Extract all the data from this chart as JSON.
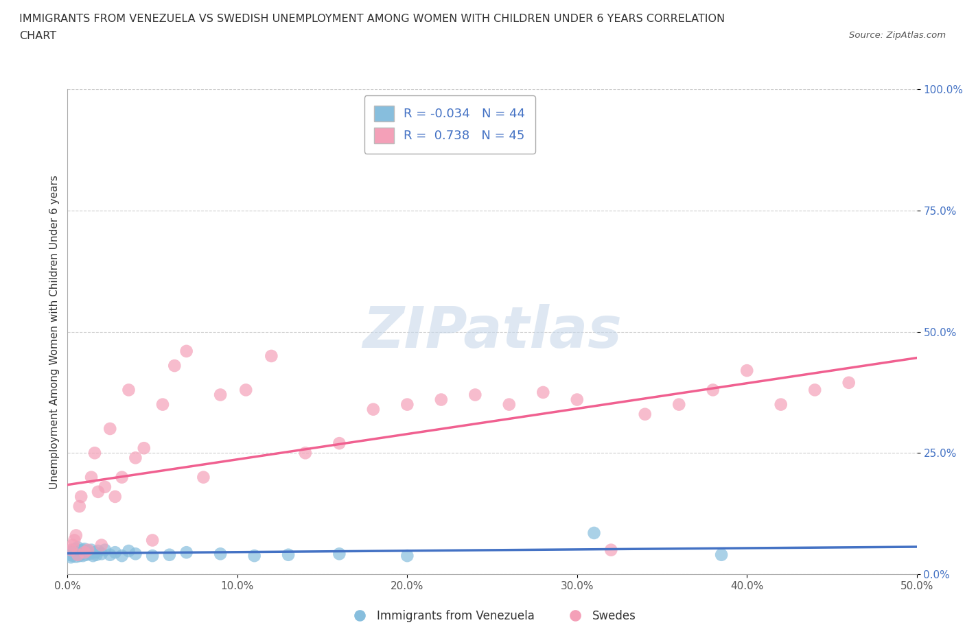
{
  "title_line1": "IMMIGRANTS FROM VENEZUELA VS SWEDISH UNEMPLOYMENT AMONG WOMEN WITH CHILDREN UNDER 6 YEARS CORRELATION",
  "title_line2": "CHART",
  "source": "Source: ZipAtlas.com",
  "ylabel": "Unemployment Among Women with Children Under 6 years",
  "watermark": "ZIPatlas",
  "xlim": [
    0.0,
    0.5
  ],
  "ylim": [
    0.0,
    1.0
  ],
  "xticks": [
    0.0,
    0.1,
    0.2,
    0.3,
    0.4,
    0.5
  ],
  "yticks": [
    0.0,
    0.25,
    0.5,
    0.75,
    1.0
  ],
  "xticklabels": [
    "0.0%",
    "10.0%",
    "20.0%",
    "30.0%",
    "40.0%",
    "50.0%"
  ],
  "yticklabels": [
    "0.0%",
    "25.0%",
    "50.0%",
    "75.0%",
    "100.0%"
  ],
  "blue_R": -0.034,
  "blue_N": 44,
  "pink_R": 0.738,
  "pink_N": 45,
  "blue_color": "#87BEDD",
  "pink_color": "#F4A0B8",
  "blue_line_color": "#4472C4",
  "pink_line_color": "#F06090",
  "legend_label_blue": "Immigrants from Venezuela",
  "legend_label_pink": "Swedes",
  "blue_scatter_x": [
    0.001,
    0.002,
    0.002,
    0.003,
    0.003,
    0.004,
    0.004,
    0.005,
    0.005,
    0.006,
    0.006,
    0.007,
    0.007,
    0.008,
    0.008,
    0.009,
    0.009,
    0.01,
    0.01,
    0.011,
    0.012,
    0.013,
    0.014,
    0.015,
    0.016,
    0.017,
    0.018,
    0.02,
    0.022,
    0.025,
    0.028,
    0.032,
    0.036,
    0.04,
    0.05,
    0.06,
    0.07,
    0.09,
    0.11,
    0.13,
    0.16,
    0.2,
    0.31,
    0.385
  ],
  "blue_scatter_y": [
    0.04,
    0.035,
    0.045,
    0.038,
    0.05,
    0.042,
    0.048,
    0.036,
    0.052,
    0.04,
    0.055,
    0.044,
    0.038,
    0.048,
    0.042,
    0.05,
    0.038,
    0.045,
    0.052,
    0.04,
    0.048,
    0.042,
    0.05,
    0.038,
    0.045,
    0.04,
    0.048,
    0.042,
    0.05,
    0.04,
    0.045,
    0.038,
    0.048,
    0.042,
    0.038,
    0.04,
    0.045,
    0.042,
    0.038,
    0.04,
    0.042,
    0.038,
    0.085,
    0.04
  ],
  "pink_scatter_x": [
    0.002,
    0.003,
    0.004,
    0.005,
    0.006,
    0.007,
    0.008,
    0.01,
    0.012,
    0.014,
    0.016,
    0.018,
    0.02,
    0.022,
    0.025,
    0.028,
    0.032,
    0.036,
    0.04,
    0.045,
    0.05,
    0.056,
    0.063,
    0.07,
    0.08,
    0.09,
    0.105,
    0.12,
    0.14,
    0.16,
    0.18,
    0.2,
    0.22,
    0.24,
    0.26,
    0.28,
    0.3,
    0.32,
    0.34,
    0.36,
    0.38,
    0.4,
    0.42,
    0.44,
    0.46
  ],
  "pink_scatter_y": [
    0.05,
    0.06,
    0.07,
    0.08,
    0.04,
    0.14,
    0.16,
    0.045,
    0.05,
    0.2,
    0.25,
    0.17,
    0.06,
    0.18,
    0.3,
    0.16,
    0.2,
    0.38,
    0.24,
    0.26,
    0.07,
    0.35,
    0.43,
    0.46,
    0.2,
    0.37,
    0.38,
    0.45,
    0.25,
    0.27,
    0.34,
    0.35,
    0.36,
    0.37,
    0.35,
    0.375,
    0.36,
    0.05,
    0.33,
    0.35,
    0.38,
    0.42,
    0.35,
    0.38,
    0.395
  ],
  "background_color": "#FFFFFF",
  "grid_color": "#CCCCCC",
  "title_color": "#333333",
  "tick_color_y": "#4472C4",
  "tick_color_x": "#555555"
}
